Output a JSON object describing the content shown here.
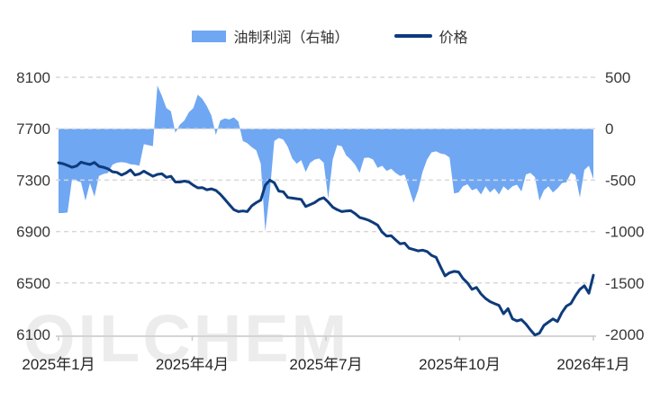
{
  "watermark": {
    "text": "OILCHEM"
  },
  "chart_data": {
    "type": "combo",
    "title": "",
    "legend_position": "top",
    "grid": "dashed-horizontal",
    "background": "#ffffff",
    "gridline_color": "#d8d8d8",
    "axis_line_color": "#d4d4d4",
    "legend": [
      {
        "label": "油制利润（右轴）",
        "marker": "area",
        "color": "#6FA7F3"
      },
      {
        "label": "价格",
        "marker": "line",
        "color": "#0D3B7C"
      }
    ],
    "x_axis": {
      "tick_labels": [
        "2025年1月",
        "2025年4月",
        "2025年7月",
        "2025年10月",
        "2026年1月"
      ],
      "tick_positions": [
        0,
        0.25,
        0.5,
        0.75,
        1
      ]
    },
    "left_axis": {
      "min": 6100,
      "max": 8100,
      "ticks": [
        8100,
        7700,
        7300,
        6900,
        6500,
        6100
      ]
    },
    "right_axis": {
      "min": -2000,
      "max": 500,
      "ticks": [
        500,
        0,
        -500,
        -1000,
        -1500,
        -2000
      ]
    },
    "x_note": "values are 120 evenly spaced samples spanning 2025年1月 through 2026年1月 (estimated from pixels)",
    "series": [
      {
        "name": "油制利润（右轴）",
        "axis": "right",
        "type": "area",
        "baseline": 0,
        "color": "#6FA7F3",
        "values": [
          -820,
          -820,
          -815,
          -490,
          -505,
          -520,
          -700,
          -530,
          -660,
          -460,
          -440,
          -430,
          -350,
          -330,
          -325,
          -330,
          -345,
          -350,
          -360,
          -150,
          -160,
          -170,
          420,
          320,
          200,
          170,
          -40,
          40,
          80,
          160,
          200,
          330,
          290,
          220,
          130,
          -60,
          80,
          100,
          90,
          110,
          70,
          -120,
          -140,
          -180,
          -210,
          -340,
          -1000,
          -620,
          -120,
          -90,
          -105,
          -175,
          -290,
          -340,
          -305,
          -420,
          -330,
          -300,
          -290,
          -330,
          -680,
          -300,
          -160,
          -170,
          -260,
          -300,
          -350,
          -430,
          -285,
          -280,
          -300,
          -380,
          -360,
          -410,
          -390,
          -430,
          -460,
          -445,
          -580,
          -720,
          -600,
          -420,
          -300,
          -230,
          -220,
          -240,
          -250,
          -280,
          -630,
          -620,
          -560,
          -540,
          -600,
          -580,
          -640,
          -560,
          -620,
          -580,
          -640,
          -560,
          -600,
          -560,
          -545,
          -610,
          -445,
          -430,
          -470,
          -700,
          -600,
          -560,
          -620,
          -580,
          -530,
          -520,
          -430,
          -450,
          -670,
          -400,
          -360,
          -490
        ]
      },
      {
        "name": "价格",
        "axis": "left",
        "type": "line",
        "color": "#0D3B7C",
        "values": [
          7435,
          7428,
          7415,
          7400,
          7410,
          7440,
          7430,
          7422,
          7438,
          7408,
          7400,
          7388,
          7365,
          7360,
          7340,
          7355,
          7380,
          7340,
          7348,
          7370,
          7350,
          7330,
          7345,
          7350,
          7322,
          7330,
          7285,
          7285,
          7292,
          7285,
          7260,
          7240,
          7242,
          7225,
          7232,
          7220,
          7190,
          7150,
          7110,
          7070,
          7055,
          7060,
          7055,
          7100,
          7125,
          7145,
          7260,
          7300,
          7280,
          7215,
          7210,
          7165,
          7160,
          7155,
          7150,
          7095,
          7110,
          7125,
          7150,
          7163,
          7130,
          7090,
          7070,
          7055,
          7060,
          7062,
          7040,
          7010,
          7000,
          6988,
          6970,
          6950,
          6895,
          6865,
          6868,
          6835,
          6805,
          6810,
          6770,
          6760,
          6750,
          6755,
          6745,
          6715,
          6700,
          6625,
          6555,
          6580,
          6590,
          6585,
          6535,
          6500,
          6450,
          6465,
          6415,
          6380,
          6355,
          6340,
          6325,
          6260,
          6300,
          6220,
          6205,
          6215,
          6180,
          6135,
          6095,
          6110,
          6170,
          6195,
          6220,
          6200,
          6270,
          6320,
          6340,
          6400,
          6450,
          6478,
          6420,
          6560
        ]
      }
    ]
  }
}
